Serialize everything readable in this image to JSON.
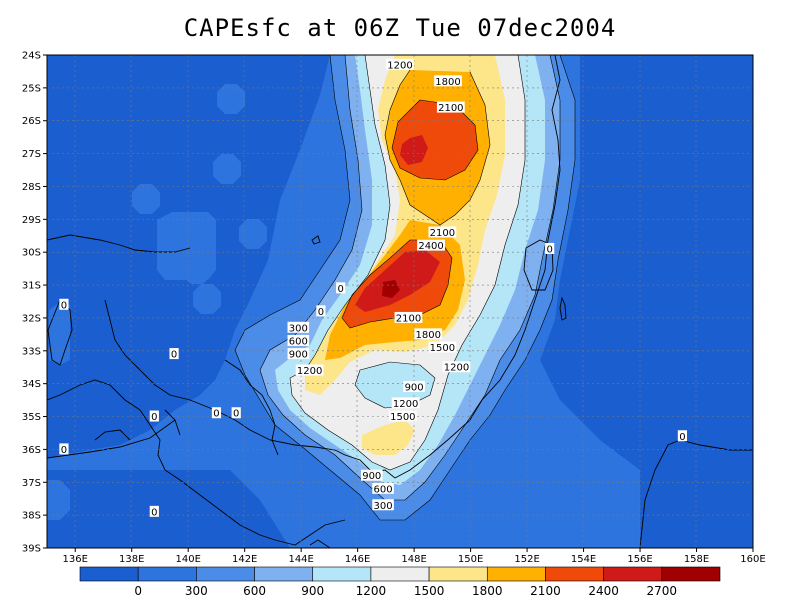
{
  "title": "CAPEsfc at 06Z Tue 07dec2004",
  "chart_data": {
    "type": "heatmap",
    "title": "CAPEsfc at 06Z Tue 07dec2004",
    "lon_range": [
      135,
      160
    ],
    "lat_range": [
      -39,
      -24
    ],
    "x_ticks": [
      "136E",
      "138E",
      "140E",
      "142E",
      "144E",
      "146E",
      "148E",
      "150E",
      "152E",
      "154E",
      "156E",
      "158E",
      "160E"
    ],
    "y_ticks": [
      "24S",
      "25S",
      "26S",
      "27S",
      "28S",
      "29S",
      "30S",
      "31S",
      "32S",
      "33S",
      "34S",
      "35S",
      "36S",
      "37S",
      "38S",
      "39S"
    ],
    "colorbar": {
      "labels": [
        "0",
        "300",
        "600",
        "900",
        "1200",
        "1500",
        "1800",
        "2100",
        "2400",
        "2700"
      ],
      "colors": [
        "#1a5ecf",
        "#2d74de",
        "#4a8ce8",
        "#7fb0f0",
        "#b5e6f8",
        "#eeeeee",
        "#fde68a",
        "#ffb000",
        "#f04a0a",
        "#d01a1a",
        "#a00000"
      ]
    },
    "contour_labels": [
      {
        "text": "1200",
        "lon": 147.5,
        "lat": -24.3
      },
      {
        "text": "1800",
        "lon": 149.2,
        "lat": -24.8
      },
      {
        "text": "2100",
        "lon": 149.3,
        "lat": -25.6
      },
      {
        "text": "2100",
        "lon": 149.0,
        "lat": -29.4
      },
      {
        "text": "2400",
        "lon": 148.6,
        "lat": -29.8
      },
      {
        "text": "0",
        "lon": 152.8,
        "lat": -29.9
      },
      {
        "text": "0",
        "lon": 145.4,
        "lat": -31.1
      },
      {
        "text": "0",
        "lon": 144.7,
        "lat": -31.8
      },
      {
        "text": "0",
        "lon": 135.6,
        "lat": -31.6
      },
      {
        "text": "300",
        "lon": 143.9,
        "lat": -32.3
      },
      {
        "text": "600",
        "lon": 143.9,
        "lat": -32.7
      },
      {
        "text": "2100",
        "lon": 147.8,
        "lat": -32.0
      },
      {
        "text": "1800",
        "lon": 148.5,
        "lat": -32.5
      },
      {
        "text": "1500",
        "lon": 149.0,
        "lat": -32.9
      },
      {
        "text": "900",
        "lon": 143.9,
        "lat": -33.1
      },
      {
        "text": "0",
        "lon": 139.5,
        "lat": -33.1
      },
      {
        "text": "1200",
        "lon": 144.3,
        "lat": -33.6
      },
      {
        "text": "1200",
        "lon": 149.5,
        "lat": -33.5
      },
      {
        "text": "900",
        "lon": 148.0,
        "lat": -34.1
      },
      {
        "text": "1200",
        "lon": 147.7,
        "lat": -34.6
      },
      {
        "text": "1500",
        "lon": 147.6,
        "lat": -35.0
      },
      {
        "text": "0",
        "lon": 138.8,
        "lat": -35.0
      },
      {
        "text": "0",
        "lon": 141.0,
        "lat": -34.9
      },
      {
        "text": "0",
        "lon": 141.7,
        "lat": -34.9
      },
      {
        "text": "0",
        "lon": 135.6,
        "lat": -36.0
      },
      {
        "text": "0",
        "lon": 157.5,
        "lat": -35.6
      },
      {
        "text": "900",
        "lon": 146.5,
        "lat": -36.8
      },
      {
        "text": "600",
        "lon": 146.9,
        "lat": -37.2
      },
      {
        "text": "300",
        "lon": 146.9,
        "lat": -37.7
      },
      {
        "text": "0",
        "lon": 138.8,
        "lat": -37.9
      }
    ]
  }
}
